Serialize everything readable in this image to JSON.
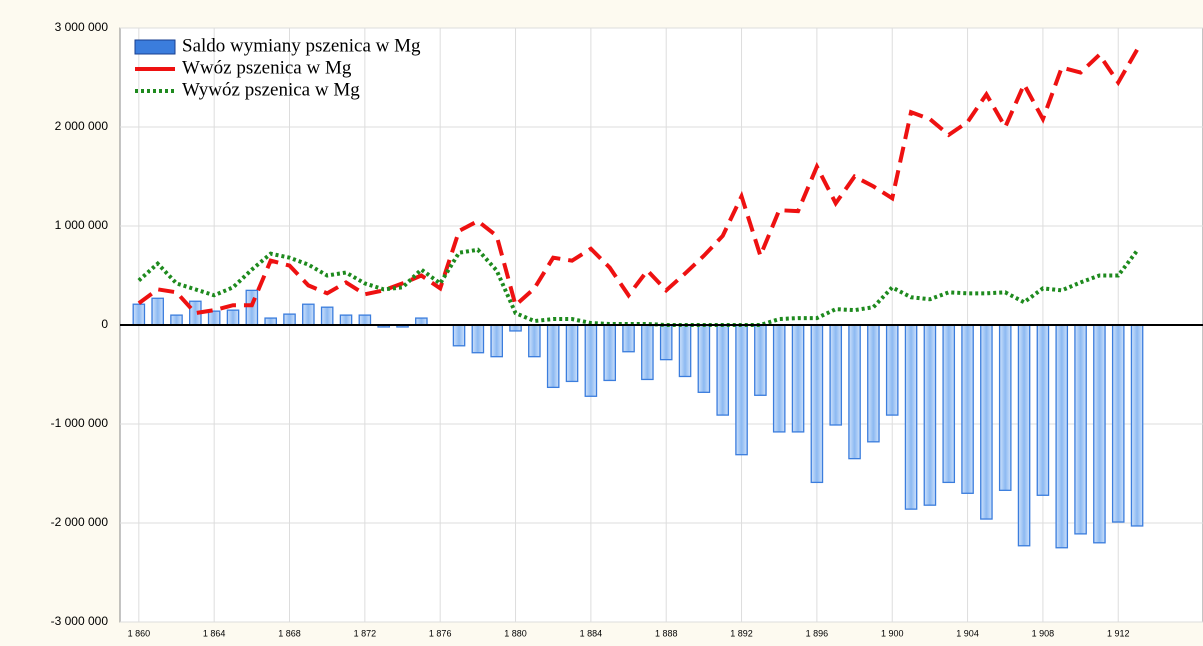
{
  "chart_data": {
    "type": "bar",
    "x": [
      1860,
      1861,
      1862,
      1863,
      1864,
      1865,
      1866,
      1867,
      1868,
      1869,
      1870,
      1871,
      1872,
      1873,
      1874,
      1875,
      1876,
      1877,
      1878,
      1879,
      1880,
      1881,
      1882,
      1883,
      1884,
      1885,
      1886,
      1887,
      1888,
      1889,
      1890,
      1891,
      1892,
      1893,
      1894,
      1895,
      1896,
      1897,
      1898,
      1899,
      1900,
      1901,
      1902,
      1903,
      1904,
      1905,
      1906,
      1907,
      1908,
      1909,
      1910,
      1911,
      1912,
      1913
    ],
    "series": [
      {
        "name": "Saldo wymiany pszenica  w Mg",
        "type": "bar",
        "color": "#3b7ddd",
        "values": [
          210000,
          270000,
          100000,
          240000,
          140000,
          150000,
          350000,
          70000,
          110000,
          210000,
          180000,
          100000,
          100000,
          -20000,
          -20000,
          70000,
          0,
          -210000,
          -280000,
          -320000,
          -60000,
          -320000,
          -630000,
          -570000,
          -720000,
          -560000,
          -270000,
          -550000,
          -350000,
          -520000,
          -680000,
          -910000,
          -1310000,
          -710000,
          -1080000,
          -1080000,
          -1590000,
          -1010000,
          -1350000,
          -1180000,
          -910000,
          -1860000,
          -1820000,
          -1590000,
          -1700000,
          -1960000,
          -1670000,
          -2230000,
          -1720000,
          -2250000,
          -2110000,
          -2200000,
          -1990000,
          -2030000
        ]
      },
      {
        "name": "Wwóz pszenica w Mg",
        "type": "line",
        "style": "dashed",
        "color": "#ee1111",
        "values": [
          220000,
          360000,
          330000,
          120000,
          150000,
          200000,
          200000,
          650000,
          600000,
          400000,
          320000,
          430000,
          310000,
          350000,
          420000,
          500000,
          370000,
          950000,
          1050000,
          900000,
          200000,
          370000,
          680000,
          650000,
          770000,
          580000,
          300000,
          550000,
          350000,
          520000,
          700000,
          900000,
          1300000,
          700000,
          1160000,
          1150000,
          1600000,
          1230000,
          1500000,
          1400000,
          1280000,
          2150000,
          2080000,
          1920000,
          2050000,
          2330000,
          2000000,
          2430000,
          2080000,
          2600000,
          2550000,
          2730000,
          2450000,
          2780000
        ]
      },
      {
        "name": "Wywóz pszenica w Mg",
        "type": "line",
        "style": "dotted",
        "color": "#1e8a1e",
        "values": [
          450000,
          620000,
          420000,
          360000,
          300000,
          380000,
          560000,
          720000,
          680000,
          610000,
          500000,
          530000,
          420000,
          360000,
          380000,
          560000,
          420000,
          730000,
          760000,
          550000,
          120000,
          40000,
          60000,
          60000,
          20000,
          10000,
          10000,
          10000,
          0,
          0,
          0,
          0,
          0,
          0,
          60000,
          70000,
          70000,
          160000,
          150000,
          180000,
          380000,
          280000,
          260000,
          330000,
          320000,
          320000,
          330000,
          230000,
          370000,
          350000,
          430000,
          500000,
          500000,
          750000
        ]
      }
    ],
    "xlim": [
      1859,
      1916.5
    ],
    "xticks": [
      {
        "value": 1860,
        "label": "1 860"
      },
      {
        "value": 1864,
        "label": "1 864"
      },
      {
        "value": 1868,
        "label": "1 868"
      },
      {
        "value": 1872,
        "label": "1 872"
      },
      {
        "value": 1876,
        "label": "1 876"
      },
      {
        "value": 1880,
        "label": "1 880"
      },
      {
        "value": 1884,
        "label": "1 884"
      },
      {
        "value": 1888,
        "label": "1 888"
      },
      {
        "value": 1892,
        "label": "1 892"
      },
      {
        "value": 1896,
        "label": "1 896"
      },
      {
        "value": 1900,
        "label": "1 900"
      },
      {
        "value": 1904,
        "label": "1 904"
      },
      {
        "value": 1908,
        "label": "1 908"
      },
      {
        "value": 1912,
        "label": "1 912"
      }
    ],
    "ylim": [
      -3000000,
      3000000
    ],
    "yticks": [
      {
        "value": -3000000,
        "label": "-3 000 000"
      },
      {
        "value": -2000000,
        "label": "-2 000 000"
      },
      {
        "value": -1000000,
        "label": "-1 000 000"
      },
      {
        "value": 0,
        "label": "0"
      },
      {
        "value": 1000000,
        "label": "1 000 000"
      },
      {
        "value": 2000000,
        "label": "2 000 000"
      },
      {
        "value": 3000000,
        "label": "3 000 000"
      }
    ],
    "grid": true,
    "legend": "top-left"
  }
}
